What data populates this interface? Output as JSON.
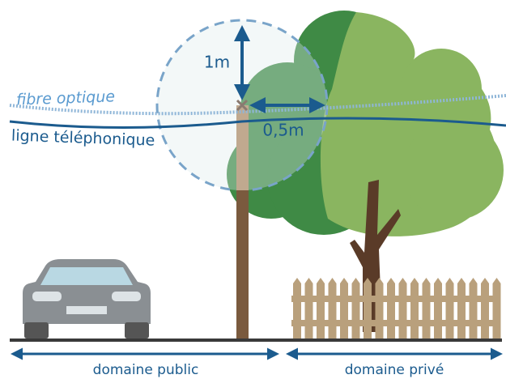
{
  "labels": {
    "fiber": "fibre optique",
    "phone_line": "ligne téléphonique",
    "vertical_distance": "1m",
    "horizontal_distance": "0,5m",
    "public_domain": "domaine public",
    "private_domain": "domaine privé"
  }
}
